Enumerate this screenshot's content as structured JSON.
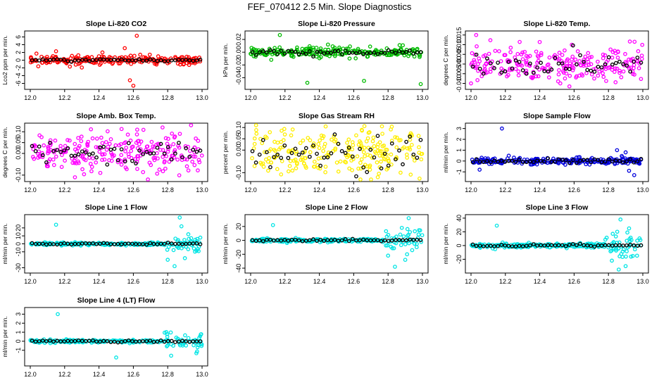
{
  "figure_title": "FEF_070412  2.5 Min. Slope Diagnostics",
  "chart_data": [
    {
      "type": "scatter",
      "title": "Slope Li-820 CO2",
      "ylabel": "Lco2 ppm per min.",
      "color": "#ff0000",
      "xlim": [
        12.0,
        13.0
      ],
      "xticks": [
        "12.0",
        "12.2",
        "12.4",
        "12.6",
        "12.8",
        "13.0"
      ],
      "ylim": [
        -7,
        7
      ],
      "yticks": [
        -6,
        -4,
        -2,
        0,
        2,
        4,
        6
      ],
      "ytick_labels": [
        "-6",
        "-4",
        "-2",
        "0",
        "2",
        "4",
        "6"
      ],
      "center": 0.0,
      "noise": 0.6,
      "outliers": [
        [
          12.15,
          2.3
        ],
        [
          12.42,
          2.0
        ],
        [
          12.55,
          3.1
        ],
        [
          12.58,
          -5.2
        ],
        [
          12.62,
          6.3
        ],
        [
          12.6,
          -6.6
        ],
        [
          12.3,
          -1.9
        ]
      ],
      "black_noise": 0.15
    },
    {
      "type": "scatter",
      "title": "Slope Li-820 Pressure",
      "ylabel": "kPa per min.",
      "color": "#00bb00",
      "xlim": [
        12.0,
        13.0
      ],
      "xticks": [
        "12.0",
        "12.2",
        "12.4",
        "12.6",
        "12.8",
        "13.0"
      ],
      "ylim": [
        -0.055,
        0.03
      ],
      "yticks": [
        -0.04,
        -0.02,
        0.0,
        0.02
      ],
      "ytick_labels": [
        "-0.04",
        "-0.02",
        "0.00",
        "0.02"
      ],
      "center": 0.0,
      "noise": 0.004,
      "outliers": [
        [
          12.17,
          0.027
        ],
        [
          12.33,
          -0.048
        ],
        [
          12.66,
          -0.045
        ],
        [
          12.99,
          -0.05
        ],
        [
          12.12,
          -0.012
        ],
        [
          12.45,
          0.012
        ]
      ],
      "black_noise": 0.002
    },
    {
      "type": "scatter",
      "title": "Slope Li-820 Temp.",
      "ylabel": "degrees C per min.",
      "color": "#ff00ff",
      "xlim": [
        12.0,
        13.0
      ],
      "xticks": [
        "12.0",
        "12.2",
        "12.4",
        "12.6",
        "12.8",
        "13.0"
      ],
      "ylim": [
        -0.012,
        0.016
      ],
      "yticks": [
        -0.01,
        -0.005,
        0.0,
        0.005,
        0.01,
        0.015
      ],
      "ytick_labels": [
        "-0.010",
        "-0.005",
        "0.000",
        "0.005",
        "0.010",
        "0.015"
      ],
      "center": 0.0,
      "noise": 0.0045,
      "outliers": [
        [
          12.03,
          0.015
        ],
        [
          12.0,
          -0.01
        ]
      ],
      "black_noise": 0.003
    },
    {
      "type": "scatter",
      "title": "Slope Amb. Box Temp.",
      "ylabel": "degrees C per min.",
      "color": "#ff00ff",
      "xlim": [
        12.0,
        13.0
      ],
      "xticks": [
        "12.0",
        "12.2",
        "12.4",
        "12.6",
        "12.8",
        "13.0"
      ],
      "ylim": [
        -0.12,
        0.13
      ],
      "yticks": [
        -0.1,
        0.0,
        0.05,
        0.1
      ],
      "ytick_labels": [
        "-0.10",
        "0.00",
        "0.05",
        "0.10"
      ],
      "center": 0.0,
      "noise": 0.045,
      "outliers": [
        [
          12.77,
          0.12
        ],
        [
          12.26,
          -0.11
        ]
      ],
      "black_noise": 0.03
    },
    {
      "type": "scatter",
      "title": "Slope Gas Stream RH",
      "ylabel": "percent per min.",
      "color": "#ffee00",
      "xlim": [
        12.0,
        13.0
      ],
      "xticks": [
        "12.0",
        "12.2",
        "12.4",
        "12.6",
        "12.8",
        "13.0"
      ],
      "ylim": [
        -0.13,
        0.11
      ],
      "yticks": [
        -0.1,
        0.0,
        0.05,
        0.1
      ],
      "ytick_labels": [
        "-0.10",
        "0.00",
        "0.05",
        "0.10"
      ],
      "center": -0.01,
      "noise": 0.05,
      "outliers": [
        [
          12.74,
          -0.12
        ]
      ],
      "black_noise": 0.04
    },
    {
      "type": "scatter",
      "title": "Slope Sample Flow",
      "ylabel": "ml/min per min.",
      "color": "#0000dd",
      "xlim": [
        12.0,
        13.0
      ],
      "xticks": [
        "12.0",
        "12.2",
        "12.4",
        "12.6",
        "12.8",
        "13.0"
      ],
      "ylim": [
        -1.7,
        3.3
      ],
      "yticks": [
        -1,
        0,
        1,
        2,
        3
      ],
      "ytick_labels": [
        "-1",
        "0",
        "1",
        "2",
        "3"
      ],
      "center": 0.0,
      "noise": 0.15,
      "outliers": [
        [
          12.18,
          3.0
        ],
        [
          12.05,
          -0.8
        ],
        [
          12.9,
          0.8
        ],
        [
          12.95,
          -1.3
        ],
        [
          12.85,
          1.0
        ],
        [
          12.92,
          -0.9
        ]
      ],
      "black_noise": 0.1
    },
    {
      "type": "scatter",
      "title": "Slope Line 1 Flow",
      "ylabel": "ml/min per min.",
      "color": "#00e5e5",
      "xlim": [
        12.0,
        13.0
      ],
      "xticks": [
        "12.0",
        "12.2",
        "12.4",
        "12.6",
        "12.8",
        "13.0"
      ],
      "ylim": [
        -34,
        34
      ],
      "yticks": [
        -30,
        -10,
        0,
        10,
        20
      ],
      "ytick_labels": [
        "-30",
        "-10",
        "0",
        "10",
        "20"
      ],
      "center": 0.0,
      "noise": 0.8,
      "outliers": [
        [
          12.15,
          24
        ],
        [
          12.87,
          33
        ],
        [
          12.84,
          -28
        ],
        [
          12.9,
          -18
        ],
        [
          12.92,
          12
        ],
        [
          12.8,
          -20
        ],
        [
          12.88,
          22
        ]
      ],
      "black_noise": 0.5
    },
    {
      "type": "scatter",
      "title": "Slope Line 2 Flow",
      "ylabel": "ml/min per min.",
      "color": "#00e5e5",
      "xlim": [
        12.0,
        13.0
      ],
      "xticks": [
        "12.0",
        "12.2",
        "12.4",
        "12.6",
        "12.8",
        "13.0"
      ],
      "ylim": [
        -44,
        34
      ],
      "yticks": [
        -40,
        -20,
        0,
        20
      ],
      "ytick_labels": [
        "-40",
        "-20",
        "0",
        "20"
      ],
      "center": 0.0,
      "noise": 1.2,
      "outliers": [
        [
          12.13,
          22
        ],
        [
          12.92,
          32
        ],
        [
          12.84,
          -38
        ],
        [
          12.9,
          -28
        ],
        [
          12.88,
          18
        ],
        [
          12.8,
          -22
        ]
      ],
      "black_noise": 0.8
    },
    {
      "type": "scatter",
      "title": "Slope Line 3 Flow",
      "ylabel": "ml/min per min.",
      "color": "#00e5e5",
      "xlim": [
        12.0,
        13.0
      ],
      "xticks": [
        "12.0",
        "12.2",
        "12.4",
        "12.6",
        "12.8",
        "13.0"
      ],
      "ylim": [
        -37,
        42
      ],
      "yticks": [
        -20,
        0,
        20,
        40
      ],
      "ytick_labels": [
        "-20",
        "0",
        "20",
        "40"
      ],
      "center": 0.0,
      "noise": 1.5,
      "outliers": [
        [
          12.15,
          29
        ],
        [
          12.87,
          38
        ],
        [
          12.86,
          -35
        ],
        [
          12.9,
          -30
        ],
        [
          12.92,
          25
        ],
        [
          12.82,
          -22
        ]
      ],
      "black_noise": 1.0
    },
    {
      "type": "scatter",
      "title": "Slope Line 4 (LT) Flow",
      "ylabel": "ml/min per min.",
      "color": "#00e5e5",
      "xlim": [
        12.0,
        13.0
      ],
      "xticks": [
        "12.0",
        "12.2",
        "12.4",
        "12.6",
        "12.8",
        "13.0"
      ],
      "ylim": [
        -2.5,
        3.5
      ],
      "yticks": [
        -1,
        0,
        1,
        2,
        3
      ],
      "ytick_labels": [
        "-1",
        "0",
        "1",
        "2",
        "3"
      ],
      "center": 0.0,
      "noise": 0.08,
      "outliers": [
        [
          12.16,
          3.0
        ],
        [
          12.5,
          -1.8
        ],
        [
          12.82,
          -1.6
        ],
        [
          12.85,
          0.4
        ]
      ],
      "black_noise": 0.05
    }
  ]
}
